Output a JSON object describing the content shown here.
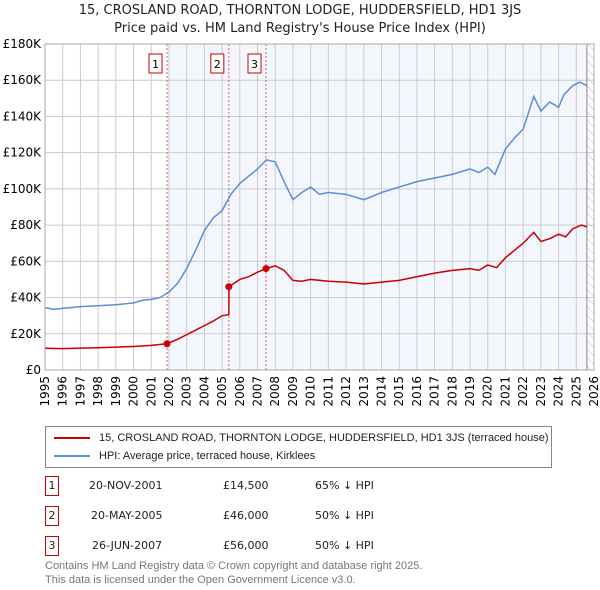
{
  "title": "15, CROSLAND ROAD, THORNTON LODGE, HUDDERSFIELD, HD1 3JS",
  "subtitle": "Price paid vs. HM Land Registry's House Price Index (HPI)",
  "chart_data": {
    "type": "line",
    "xlim": [
      1995,
      2026
    ],
    "ylim": [
      0,
      180000
    ],
    "x_ticks": [
      "1995",
      "1996",
      "1997",
      "1998",
      "1999",
      "2000",
      "2001",
      "2002",
      "2003",
      "2004",
      "2005",
      "2006",
      "2007",
      "2008",
      "2009",
      "2010",
      "2011",
      "2012",
      "2013",
      "2014",
      "2015",
      "2016",
      "2017",
      "2018",
      "2019",
      "2020",
      "2021",
      "2022",
      "2023",
      "2024",
      "2025",
      "2026"
    ],
    "y_ticks": [
      {
        "v": 0,
        "label": "£0"
      },
      {
        "v": 20000,
        "label": "£20K"
      },
      {
        "v": 40000,
        "label": "£40K"
      },
      {
        "v": 60000,
        "label": "£60K"
      },
      {
        "v": 80000,
        "label": "£80K"
      },
      {
        "v": 100000,
        "label": "£100K"
      },
      {
        "v": 120000,
        "label": "£120K"
      },
      {
        "v": 140000,
        "label": "£140K"
      },
      {
        "v": 160000,
        "label": "£160K"
      },
      {
        "v": 180000,
        "label": "£180K"
      }
    ],
    "grid": true,
    "series": [
      {
        "name": "15, CROSLAND ROAD, THORNTON LODGE, HUDDERSFIELD, HD1 3JS (terraced house)",
        "color": "#cc0000",
        "x": [
          1995,
          1996,
          1997,
          1998,
          1999,
          2000,
          2001,
          2001.88,
          2002.5,
          2003,
          2003.5,
          2004,
          2004.5,
          2005,
          2005.38,
          2005.39,
          2006,
          2006.5,
          2007,
          2007.48,
          2008,
          2008.5,
          2009,
          2009.5,
          2010,
          2011,
          2012,
          2013,
          2013.5,
          2014,
          2015,
          2016,
          2017,
          2018,
          2019,
          2019.5,
          2020,
          2020.5,
          2021,
          2021.5,
          2022,
          2022.6,
          2023,
          2023.5,
          2024,
          2024.4,
          2024.8,
          2025.3,
          2025.6
        ],
        "y": [
          12000,
          11800,
          12100,
          12300,
          12600,
          13000,
          13600,
          14500,
          17000,
          19500,
          22000,
          24500,
          27000,
          30000,
          30500,
          46000,
          50000,
          51500,
          54000,
          56000,
          57500,
          55000,
          49500,
          49000,
          50000,
          49000,
          48500,
          47500,
          48000,
          48500,
          49500,
          51500,
          53500,
          55000,
          56000,
          55000,
          58000,
          56500,
          62000,
          66000,
          70000,
          76000,
          71000,
          72500,
          75000,
          73500,
          78000,
          80000,
          79000
        ]
      },
      {
        "name": "HPI: Average price, terraced house, Kirklees",
        "color": "#5b8fd4",
        "x": [
          1995,
          1995.5,
          1996,
          1997,
          1998,
          1999,
          2000,
          2000.5,
          2001,
          2001.5,
          2002,
          2002.5,
          2003,
          2003.5,
          2004,
          2004.5,
          2005,
          2005.5,
          2006,
          2006.5,
          2007,
          2007.5,
          2008,
          2008.5,
          2009,
          2009.5,
          2010,
          2010.5,
          2011,
          2012,
          2013,
          2013.5,
          2014,
          2015,
          2016,
          2017,
          2018,
          2019,
          2019.5,
          2020,
          2020.4,
          2021,
          2021.5,
          2022,
          2022.6,
          2023,
          2023.5,
          2024,
          2024.3,
          2024.8,
          2025.2,
          2025.6
        ],
        "y": [
          34500,
          33500,
          34000,
          35000,
          35500,
          36000,
          37000,
          38500,
          39000,
          40000,
          43000,
          48000,
          56000,
          66000,
          77000,
          84000,
          88000,
          97000,
          103000,
          107000,
          111000,
          116000,
          115000,
          104000,
          94000,
          98000,
          101000,
          97000,
          98000,
          97000,
          94000,
          96000,
          98000,
          101000,
          104000,
          106000,
          108000,
          111000,
          109000,
          112000,
          108000,
          122000,
          128000,
          133000,
          151000,
          143000,
          148000,
          145000,
          152000,
          157000,
          159000,
          157000
        ]
      }
    ],
    "sales": [
      {
        "n": "1",
        "x": 2001.89,
        "y": 14500
      },
      {
        "n": "2",
        "x": 2005.38,
        "y": 46000
      },
      {
        "n": "3",
        "x": 2007.48,
        "y": 56000
      }
    ],
    "data_end": 2025.6
  },
  "legend": {
    "property": "15, CROSLAND ROAD, THORNTON LODGE, HUDDERSFIELD, HD1 3JS (terraced house)",
    "hpi": "HPI: Average price, terraced house, Kirklees"
  },
  "transactions": [
    {
      "n": "1",
      "date": "20-NOV-2001",
      "price": "£14,500",
      "delta": "65% ↓ HPI"
    },
    {
      "n": "2",
      "date": "20-MAY-2005",
      "price": "£46,000",
      "delta": "50% ↓ HPI"
    },
    {
      "n": "3",
      "date": "26-JUN-2007",
      "price": "£56,000",
      "delta": "50% ↓ HPI"
    }
  ],
  "footer": {
    "line1": "Contains HM Land Registry data © Crown copyright and database right 2025.",
    "line2": "This data is licensed under the Open Government Licence v3.0."
  }
}
